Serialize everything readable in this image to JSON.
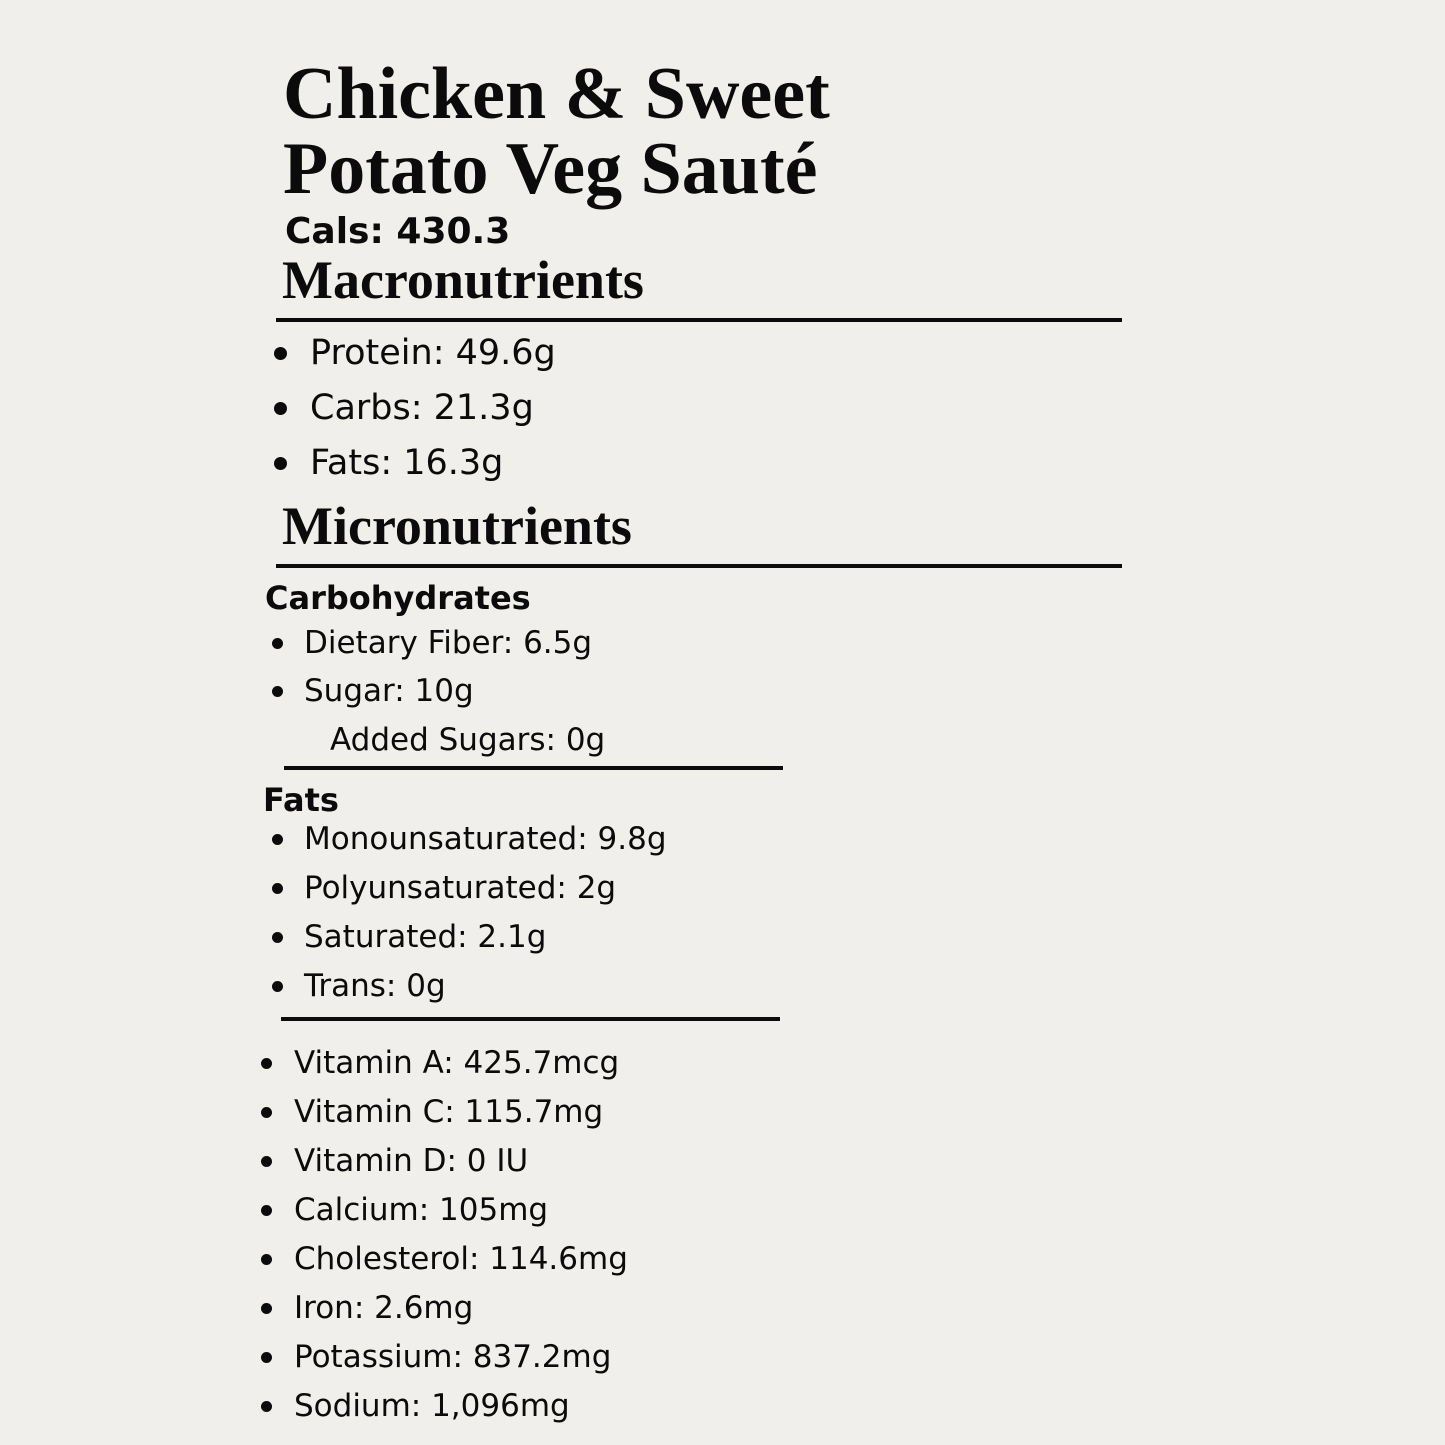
{
  "title_lines": [
    "Chicken & Sweet",
    "Potato Veg Sauté"
  ],
  "calories": "Cals: 430.3",
  "macronutrients": {
    "heading": "Macronutrients",
    "items": [
      "Protein: 49.6g",
      "Carbs: 21.3g",
      "Fats: 16.3g"
    ]
  },
  "micronutrients": {
    "heading": "Micronutrients",
    "carbohydrates": {
      "heading": "Carbohydrates",
      "items": [
        "Dietary Fiber: 6.5g",
        "Sugar: 10g"
      ],
      "sub_item": "Added Sugars: 0g"
    },
    "fats": {
      "heading": "Fats",
      "items": [
        "Monounsaturated: 9.8g",
        "Polyunsaturated: 2g",
        "Saturated: 2.1g",
        "Trans: 0g"
      ]
    },
    "other": [
      "Vitamin A: 425.7mcg",
      "Vitamin C: 115.7mg",
      "Vitamin D: 0 IU",
      "Calcium: 105mg",
      "Cholesterol: 114.6mg",
      "Iron: 2.6mg",
      "Potassium: 837.2mg",
      "Sodium: 1,096mg"
    ]
  }
}
